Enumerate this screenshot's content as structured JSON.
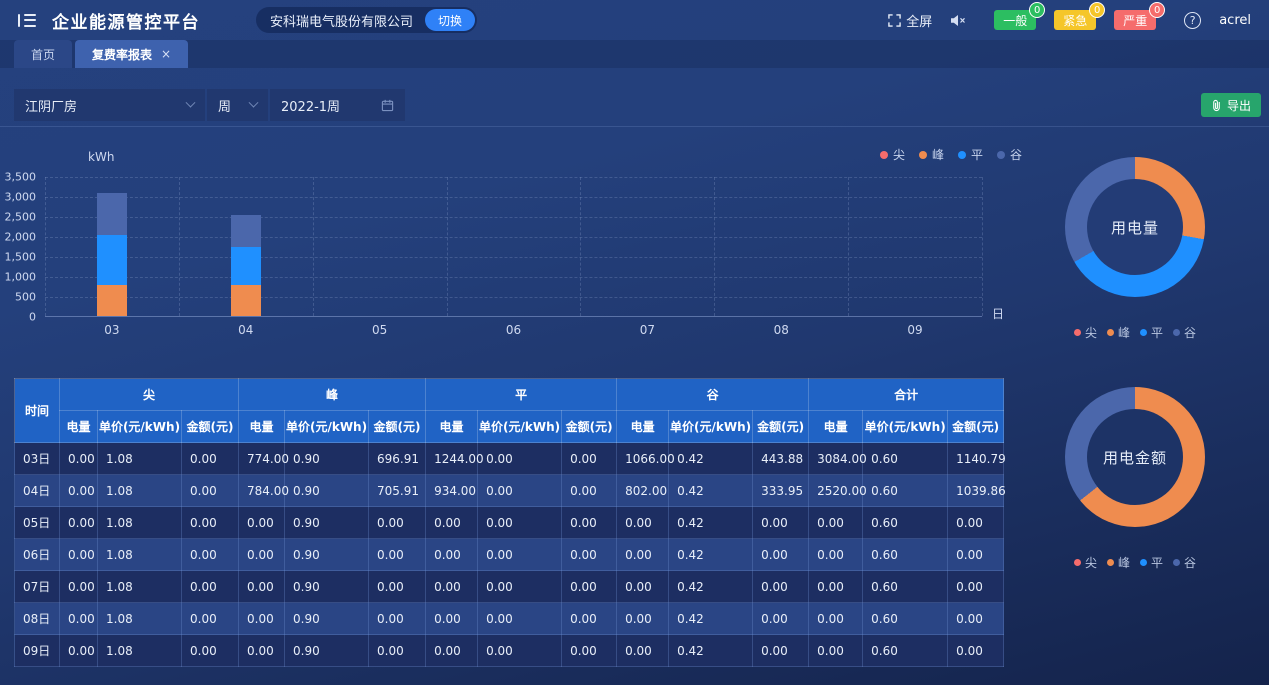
{
  "header": {
    "title": "企业能源管控平台",
    "company": "安科瑞电气股份有限公司",
    "switch_label": "切换",
    "fullscreen_label": "全屏",
    "alarms": [
      {
        "label": "一般",
        "count": "0",
        "color": "#2cbe61"
      },
      {
        "label": "紧急",
        "count": "0",
        "color": "#f5c62a"
      },
      {
        "label": "严重",
        "count": "0",
        "color": "#f56c6c"
      }
    ],
    "username": "acrel"
  },
  "icons": {
    "close": "×",
    "help": "?"
  },
  "tabs": [
    {
      "label": "首页",
      "active": false,
      "closable": false
    },
    {
      "label": "复费率报表",
      "active": true,
      "closable": true
    }
  ],
  "filters": {
    "site": "江阴厂房",
    "period": "周",
    "date": "2022-1周",
    "export_label": "导出",
    "export_color": "#27a56c"
  },
  "colors": {
    "尖": "#f56c6c",
    "峰": "#ef8c4f",
    "平": "#1f90ff",
    "谷": "#4b67ab"
  },
  "legend": {
    "items": [
      "尖",
      "峰",
      "平",
      "谷"
    ]
  },
  "chart_data": [
    {
      "type": "bar",
      "stacked": true,
      "title": "复费率用电量柱状图",
      "ylabel": "kWh",
      "xlabel": "日",
      "categories": [
        "03",
        "04",
        "05",
        "06",
        "07",
        "08",
        "09"
      ],
      "series": [
        {
          "name": "尖",
          "values": [
            0,
            0,
            0,
            0,
            0,
            0,
            0
          ]
        },
        {
          "name": "峰",
          "values": [
            774,
            784,
            0,
            0,
            0,
            0,
            0
          ]
        },
        {
          "name": "平",
          "values": [
            1244,
            934,
            0,
            0,
            0,
            0,
            0
          ]
        },
        {
          "name": "谷",
          "values": [
            1066,
            802,
            0,
            0,
            0,
            0,
            0
          ]
        }
      ],
      "ylim": [
        0,
        3500
      ],
      "yticks": [
        "0",
        "500",
        "1,000",
        "1,500",
        "2,000",
        "2,500",
        "3,000",
        "3,500"
      ],
      "grid": true,
      "legend_position": "top-right"
    },
    {
      "type": "pie",
      "title": "用电量",
      "segments": [
        {
          "name": "尖",
          "value": 0
        },
        {
          "name": "峰",
          "value": 1558
        },
        {
          "name": "平",
          "value": 2178
        },
        {
          "name": "谷",
          "value": 1868
        }
      ],
      "legend_position": "bottom"
    },
    {
      "type": "pie",
      "title": "用电金额",
      "segments": [
        {
          "name": "尖",
          "value": 0
        },
        {
          "name": "峰",
          "value": 1402.82
        },
        {
          "name": "平",
          "value": 0
        },
        {
          "name": "谷",
          "value": 777.83
        }
      ],
      "legend_position": "bottom"
    }
  ],
  "table": {
    "time_label": "时间",
    "groups": [
      "尖",
      "峰",
      "平",
      "谷",
      "合计"
    ],
    "sub_cols": [
      "电量",
      "单价(元/kWh)",
      "金额(元)"
    ],
    "rows": [
      {
        "time": "03日",
        "cells": [
          "0.00",
          "1.08",
          "0.00",
          "774.00",
          "0.90",
          "696.91",
          "1244.00",
          "0.00",
          "0.00",
          "1066.00",
          "0.42",
          "443.88",
          "3084.00",
          "0.60",
          "1140.79"
        ]
      },
      {
        "time": "04日",
        "cells": [
          "0.00",
          "1.08",
          "0.00",
          "784.00",
          "0.90",
          "705.91",
          "934.00",
          "0.00",
          "0.00",
          "802.00",
          "0.42",
          "333.95",
          "2520.00",
          "0.60",
          "1039.86"
        ]
      },
      {
        "time": "05日",
        "cells": [
          "0.00",
          "1.08",
          "0.00",
          "0.00",
          "0.90",
          "0.00",
          "0.00",
          "0.00",
          "0.00",
          "0.00",
          "0.42",
          "0.00",
          "0.00",
          "0.60",
          "0.00"
        ]
      },
      {
        "time": "06日",
        "cells": [
          "0.00",
          "1.08",
          "0.00",
          "0.00",
          "0.90",
          "0.00",
          "0.00",
          "0.00",
          "0.00",
          "0.00",
          "0.42",
          "0.00",
          "0.00",
          "0.60",
          "0.00"
        ]
      },
      {
        "time": "07日",
        "cells": [
          "0.00",
          "1.08",
          "0.00",
          "0.00",
          "0.90",
          "0.00",
          "0.00",
          "0.00",
          "0.00",
          "0.00",
          "0.42",
          "0.00",
          "0.00",
          "0.60",
          "0.00"
        ]
      },
      {
        "time": "08日",
        "cells": [
          "0.00",
          "1.08",
          "0.00",
          "0.00",
          "0.90",
          "0.00",
          "0.00",
          "0.00",
          "0.00",
          "0.00",
          "0.42",
          "0.00",
          "0.00",
          "0.60",
          "0.00"
        ]
      },
      {
        "time": "09日",
        "cells": [
          "0.00",
          "1.08",
          "0.00",
          "0.00",
          "0.90",
          "0.00",
          "0.00",
          "0.00",
          "0.00",
          "0.00",
          "0.42",
          "0.00",
          "0.00",
          "0.60",
          "0.00"
        ]
      }
    ]
  }
}
